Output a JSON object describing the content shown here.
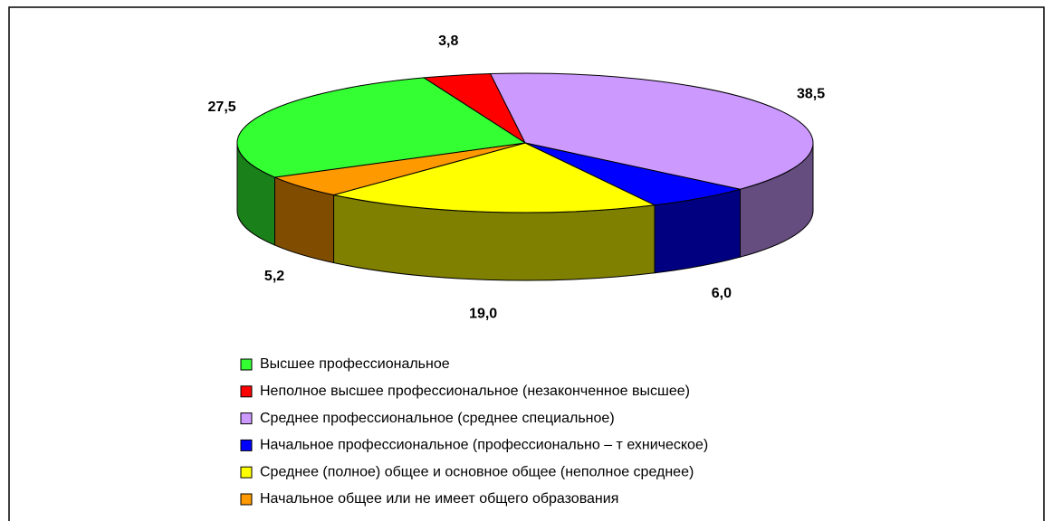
{
  "chart_data": {
    "type": "pie3d",
    "categories": [
      "Неполное высшее профессиональное (незаконченное высшее)",
      "Среднее профессиональное (среднее специальное)",
      "Начальное профессиональное (профессионально – т ехническое)",
      "Среднее (полное) общее и основное общее  (неполное среднее)",
      "Начальное общее или не имеет общего образования",
      "Высшее профессиональное"
    ],
    "values": [
      3.8,
      38.5,
      6.0,
      19.0,
      5.2,
      27.5
    ],
    "value_labels": [
      "3,8",
      "38,5",
      "6,0",
      "19,0",
      "5,2",
      "27,5"
    ],
    "colors": [
      "#ff0000",
      "#cc99ff",
      "#0000ff",
      "#ffff00",
      "#ff9900",
      "#33ff33"
    ],
    "legend_order": [
      5,
      0,
      1,
      2,
      3,
      4
    ]
  }
}
